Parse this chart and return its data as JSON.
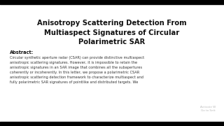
{
  "bg_color": "#ffffff",
  "border_color": "#000000",
  "title_line1": "Anisotropy Scattering Detection From",
  "title_line2": "Multiaspect Signatures of Circular",
  "title_line3": "Polarimetric SAR",
  "abstract_label": "Abstract:",
  "abstract_text": "Circular synthetic aperture radar (CSAR) can provide distinctive multiaspect\nanisotropic scattering signatures. However, it is impossible to retain the\nanisotropic signatures in an SAR image that combines all the subapertures\ncoherently or incoherently. In this letter, we propose a polarimetric CSAR\nanisotropic scattering detection framework to characterize multiaspect and\nfully polarimetric SAR signatures of pointlike and distributed targets. We",
  "watermark": "Activate W\nGo to Sett",
  "title_fontsize": 7.2,
  "abstract_label_fontsize": 4.8,
  "abstract_text_fontsize": 3.6,
  "watermark_fontsize": 3.0
}
